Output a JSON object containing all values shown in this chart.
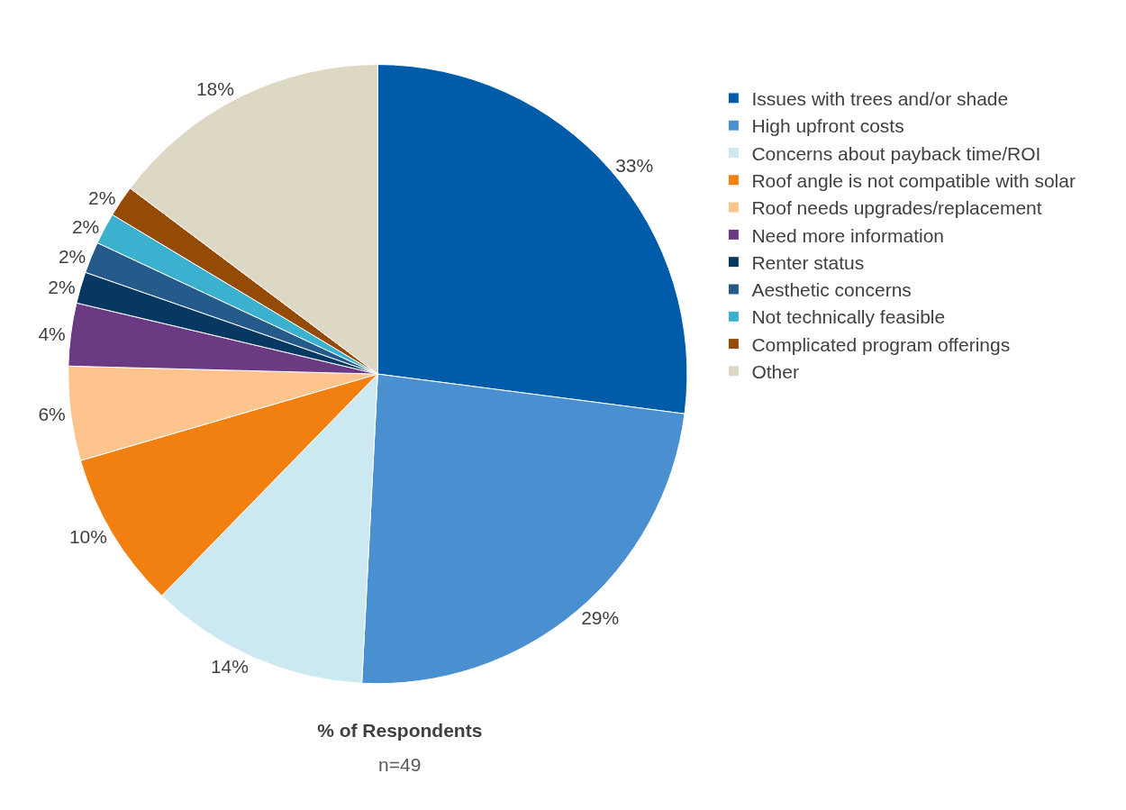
{
  "chart_data": {
    "type": "pie",
    "title": "% of Respondents",
    "subtitle": "n=49",
    "categories": [
      "Issues with trees and/or shade",
      "High upfront costs",
      "Concerns about payback time/ROI",
      "Roof angle is not compatible with solar",
      "Roof needs upgrades/replacement",
      "Need more information",
      "Renter status",
      "Aesthetic concerns",
      "Not technically feasible",
      "Complicated program offerings",
      "Other"
    ],
    "values": [
      33,
      29,
      14,
      10,
      6,
      4,
      2,
      2,
      2,
      2,
      18
    ],
    "value_labels": [
      "33%",
      "29%",
      "14%",
      "10%",
      "6%",
      "4%",
      "2%",
      "2%",
      "2%",
      "2%",
      "18%"
    ],
    "colors": [
      "#005ba9",
      "#4a90d0",
      "#cce8f0",
      "#f28011",
      "#fdc48e",
      "#6a3a82",
      "#063862",
      "#255b8a",
      "#3cb0cf",
      "#954b05",
      "#ddd8c4"
    ],
    "legend": "right"
  }
}
